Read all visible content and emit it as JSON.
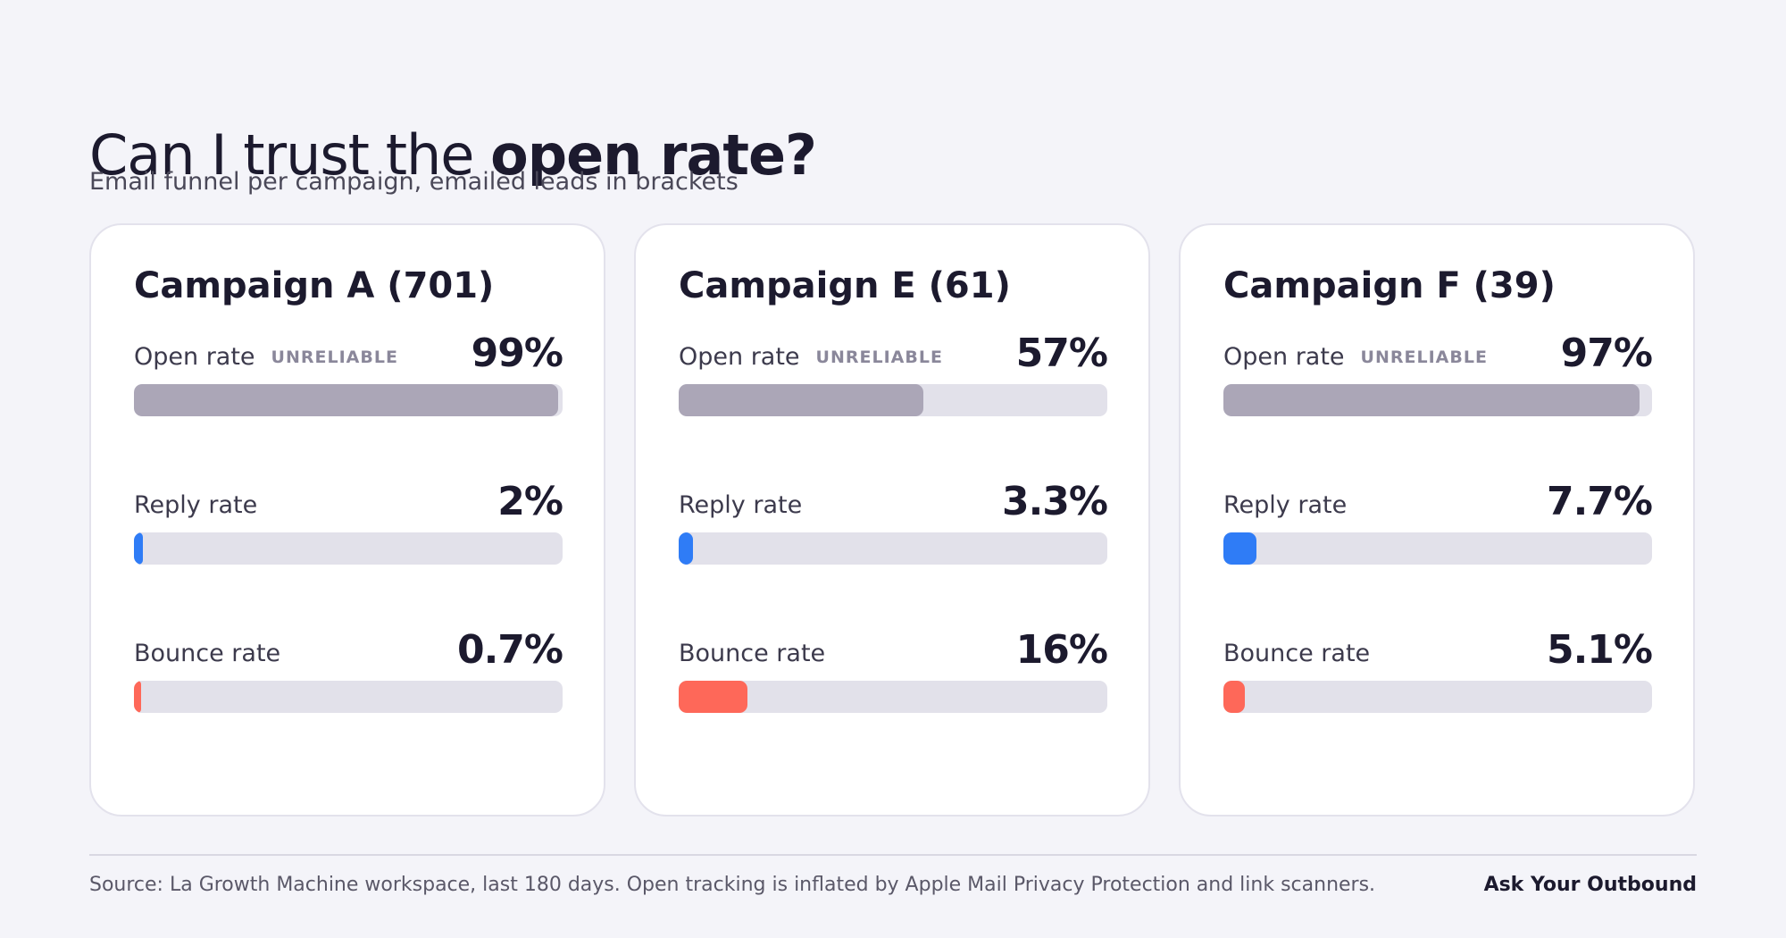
{
  "header": {
    "title_regular": "Can I trust the ",
    "title_bold": "open rate?",
    "subtitle": "Email funnel per campaign, emailed leads in brackets"
  },
  "colors": {
    "open": "#aba6b7",
    "reply": "#2f7cf6",
    "bounce": "#fe6859",
    "track": "#e2e1ea"
  },
  "chart_data": {
    "type": "bar",
    "orientation": "horizontal",
    "ylim": [
      0,
      100
    ],
    "campaigns": [
      {
        "title": "Campaign A (701)",
        "metrics": [
          {
            "key": "open",
            "label": "Open rate",
            "badge": "UNRELIABLE",
            "value": 99,
            "display": "99%"
          },
          {
            "key": "reply",
            "label": "Reply rate",
            "badge": "",
            "value": 2,
            "display": "2%"
          },
          {
            "key": "bounce",
            "label": "Bounce rate",
            "badge": "",
            "value": 0.7,
            "display": "0.7%"
          }
        ]
      },
      {
        "title": "Campaign E (61)",
        "metrics": [
          {
            "key": "open",
            "label": "Open rate",
            "badge": "UNRELIABLE",
            "value": 57,
            "display": "57%"
          },
          {
            "key": "reply",
            "label": "Reply rate",
            "badge": "",
            "value": 3.3,
            "display": "3.3%"
          },
          {
            "key": "bounce",
            "label": "Bounce rate",
            "badge": "",
            "value": 16,
            "display": "16%"
          }
        ]
      },
      {
        "title": "Campaign F (39)",
        "metrics": [
          {
            "key": "open",
            "label": "Open rate",
            "badge": "UNRELIABLE",
            "value": 97,
            "display": "97%"
          },
          {
            "key": "reply",
            "label": "Reply rate",
            "badge": "",
            "value": 7.7,
            "display": "7.7%"
          },
          {
            "key": "bounce",
            "label": "Bounce rate",
            "badge": "",
            "value": 5.1,
            "display": "5.1%"
          }
        ]
      }
    ]
  },
  "footer": {
    "source": "Source: La Growth Machine workspace, last 180 days. Open tracking is inflated by Apple Mail Privacy Protection and link scanners.",
    "brand": "Ask Your Outbound"
  }
}
